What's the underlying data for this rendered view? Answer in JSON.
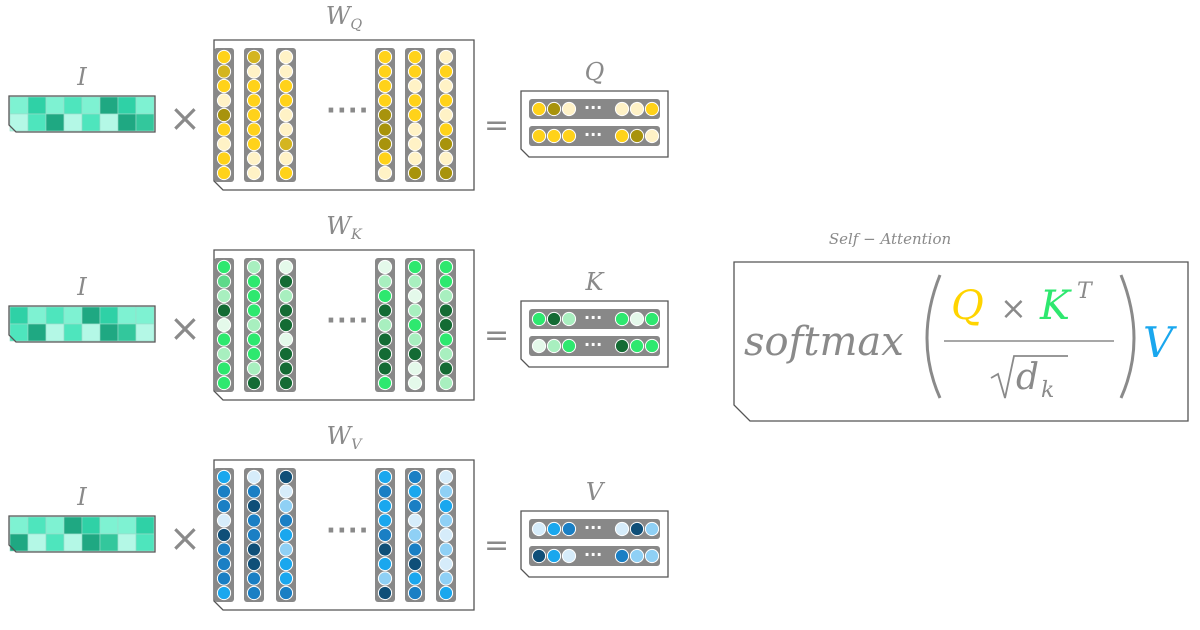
{
  "colors": {
    "frame": "#555555",
    "column": "#888888",
    "label": "#8a8a8a",
    "q_accent": "#ffd400",
    "k_accent": "#2ee86f",
    "v_accent": "#1aa7ee",
    "input_palette": [
      "#2fd1a6",
      "#4ee5bd",
      "#7ef2d2",
      "#b4f8e6",
      "#33c79c",
      "#1fa882"
    ]
  },
  "rows": [
    {
      "key": "q",
      "input_label": "I",
      "weight_label": "W",
      "weight_sub": "Q",
      "output_label": "Q",
      "times": "×",
      "equals": "=",
      "ellipsis": "····",
      "weight_columns": [
        [
          "#ffd21a",
          "#d4b520",
          "#ffd21a",
          "#fff2c6",
          "#a8930c",
          "#ffd21a",
          "#fff2c6",
          "#ffd21a",
          "#ffd21a"
        ],
        [
          "#d4b520",
          "#fff2c6",
          "#ffd21a",
          "#ffd21a",
          "#ffd21a",
          "#ffd21a",
          "#ffd21a",
          "#fff2c6",
          "#fff2c6"
        ],
        [
          "#fff2c6",
          "#fff2c6",
          "#ffd21a",
          "#ffd21a",
          "#fff2c6",
          "#fff2c6",
          "#d4b520",
          "#fff2c6",
          "#ffd21a"
        ],
        [
          "#ffd21a",
          "#ffd21a",
          "#ffd21a",
          "#ffd21a",
          "#a8930c",
          "#a8930c",
          "#a8930c",
          "#ffd21a",
          "#fff2c6"
        ],
        [
          "#ffd21a",
          "#ffd21a",
          "#fff2c6",
          "#ffd21a",
          "#ffd21a",
          "#fff2c6",
          "#fff2c6",
          "#fff2c6",
          "#a8930c"
        ],
        [
          "#fff2c6",
          "#ffd21a",
          "#fff2c6",
          "#ffd21a",
          "#fff2c6",
          "#ffd21a",
          "#a8930c",
          "#fff2c6",
          "#a8930c"
        ]
      ],
      "output_rows": [
        {
          "left": [
            "#ffd21a",
            "#a8930c",
            "#fff2c6"
          ],
          "right": [
            "#fff2c6",
            "#fff2c6",
            "#ffd21a"
          ]
        },
        {
          "left": [
            "#ffd21a",
            "#ffd21a",
            "#ffd21a"
          ],
          "right": [
            "#ffd21a",
            "#a8930c",
            "#fff2c6"
          ]
        }
      ]
    },
    {
      "key": "k",
      "input_label": "I",
      "weight_label": "W",
      "weight_sub": "K",
      "output_label": "K",
      "times": "×",
      "equals": "=",
      "ellipsis": "····",
      "weight_columns": [
        [
          "#2ee86f",
          "#5ed98a",
          "#a8efbf",
          "#146b34",
          "#e4f9ea",
          "#2ee86f",
          "#a8efbf",
          "#2ee86f",
          "#2ee86f"
        ],
        [
          "#a8efbf",
          "#2ee86f",
          "#2ee86f",
          "#2ee86f",
          "#a8efbf",
          "#2ee86f",
          "#2ee86f",
          "#a8efbf",
          "#146b34"
        ],
        [
          "#e4f9ea",
          "#146b34",
          "#a8efbf",
          "#146b34",
          "#146b34",
          "#e4f9ea",
          "#146b34",
          "#146b34",
          "#146b34"
        ],
        [
          "#e4f9ea",
          "#a8efbf",
          "#2ee86f",
          "#146b34",
          "#a8efbf",
          "#146b34",
          "#146b34",
          "#146b34",
          "#2ee86f"
        ],
        [
          "#2ee86f",
          "#a8efbf",
          "#e4f9ea",
          "#a8efbf",
          "#2ee86f",
          "#a8efbf",
          "#146b34",
          "#e4f9ea",
          "#e4f9ea"
        ],
        [
          "#2ee86f",
          "#2ee86f",
          "#a8efbf",
          "#146b34",
          "#146b34",
          "#2ee86f",
          "#a8efbf",
          "#146b34",
          "#a8efbf"
        ]
      ],
      "output_rows": [
        {
          "left": [
            "#2ee86f",
            "#146b34",
            "#a8efbf"
          ],
          "right": [
            "#2ee86f",
            "#e4f9ea",
            "#2ee86f"
          ]
        },
        {
          "left": [
            "#e4f9ea",
            "#a8efbf",
            "#2ee86f"
          ],
          "right": [
            "#146b34",
            "#2ee86f",
            "#2ee86f"
          ]
        }
      ]
    },
    {
      "key": "v",
      "input_label": "I",
      "weight_label": "W",
      "weight_sub": "V",
      "output_label": "V",
      "times": "×",
      "equals": "=",
      "ellipsis": "····",
      "weight_columns": [
        [
          "#1aa7ee",
          "#1a7fc4",
          "#1a7fc4",
          "#d6ecfa",
          "#0f4f78",
          "#1a7fc4",
          "#1a7fc4",
          "#1a7fc4",
          "#1aa7ee"
        ],
        [
          "#d6ecfa",
          "#1a7fc4",
          "#0f4f78",
          "#1a7fc4",
          "#1a7fc4",
          "#0f4f78",
          "#0f4f78",
          "#1a7fc4",
          "#1a7fc4"
        ],
        [
          "#0f4f78",
          "#d6ecfa",
          "#8fd0f5",
          "#1a7fc4",
          "#1aa7ee",
          "#8fd0f5",
          "#1aa7ee",
          "#1aa7ee",
          "#1a7fc4"
        ],
        [
          "#1aa7ee",
          "#1a7fc4",
          "#1aa7ee",
          "#1aa7ee",
          "#1a7fc4",
          "#0f4f78",
          "#1aa7ee",
          "#8fd0f5",
          "#0f4f78"
        ],
        [
          "#1a7fc4",
          "#1aa7ee",
          "#1a7fc4",
          "#d6ecfa",
          "#8fd0f5",
          "#1a7fc4",
          "#0f4f78",
          "#1aa7ee",
          "#1a7fc4"
        ],
        [
          "#d6ecfa",
          "#8fd0f5",
          "#1aa7ee",
          "#8fd0f5",
          "#d6ecfa",
          "#8fd0f5",
          "#d6ecfa",
          "#8fd0f5",
          "#1aa7ee"
        ]
      ],
      "output_rows": [
        {
          "left": [
            "#d6ecfa",
            "#1aa7ee",
            "#1a7fc4"
          ],
          "right": [
            "#d6ecfa",
            "#0f4f78",
            "#8fd0f5"
          ]
        },
        {
          "left": [
            "#0f4f78",
            "#1aa7ee",
            "#d6ecfa"
          ],
          "right": [
            "#1a7fc4",
            "#8fd0f5",
            "#8fd0f5"
          ]
        }
      ]
    }
  ],
  "attention": {
    "title": "Self − Attention",
    "fn": "softmax",
    "num_q": "Q",
    "times": "×",
    "num_k": "K",
    "sup": "T",
    "denom": "d",
    "denom_sub": "k",
    "v": "V"
  }
}
